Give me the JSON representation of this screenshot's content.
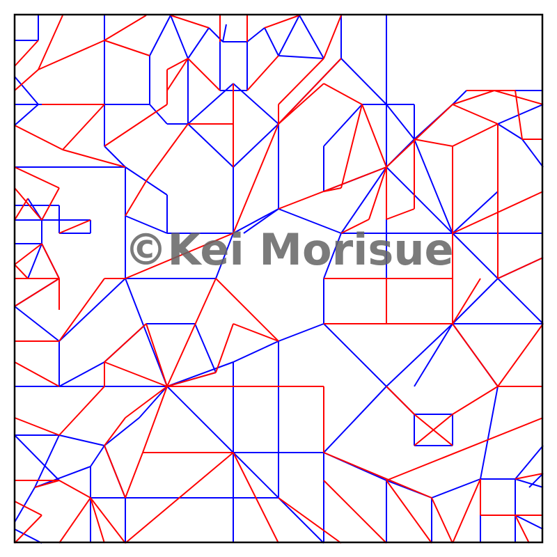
{
  "watermark": "©Kei Morisue",
  "colors": {
    "mountain": "#ff0000",
    "valley": "#0000ff",
    "border": "#000000"
  }
}
